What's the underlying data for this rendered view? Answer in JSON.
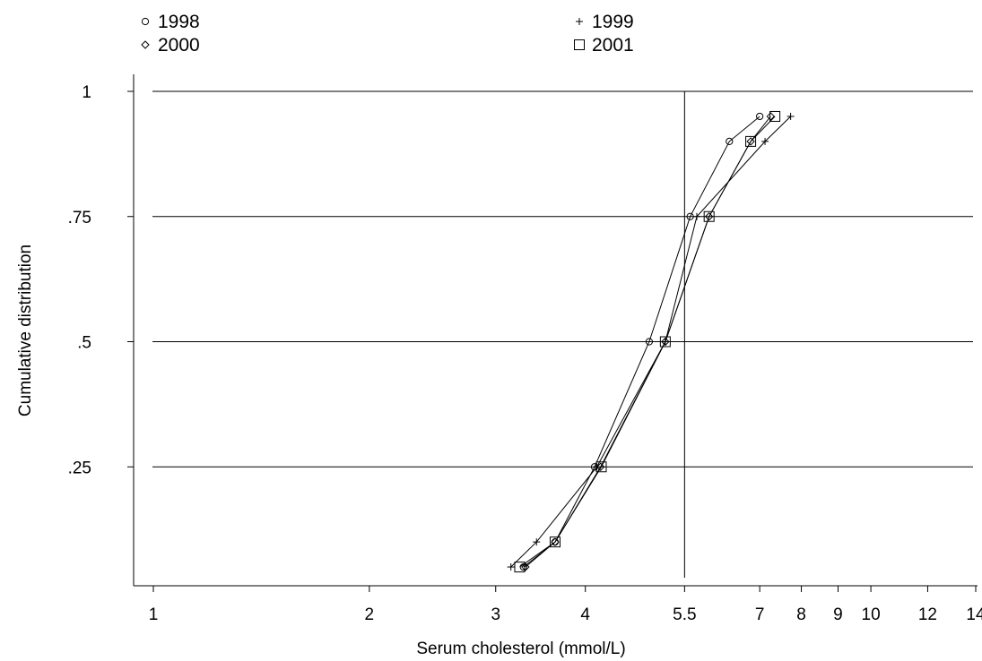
{
  "chart_data": {
    "type": "line",
    "xlabel": "Serum cholesterol (mmol/L)",
    "ylabel": "Cumulative distribution",
    "x_scale": "log",
    "xlim": [
      1,
      14
    ],
    "ylim": [
      0,
      1
    ],
    "x_ticks": [
      1,
      2,
      3,
      4,
      5.5,
      7,
      8,
      9,
      10,
      12,
      14
    ],
    "x_tick_labels": [
      "1",
      "2",
      "3",
      "4",
      "5.5",
      "7",
      "8",
      "9",
      "10",
      "12",
      "14"
    ],
    "y_ticks": [
      0.25,
      0.5,
      0.75,
      1
    ],
    "y_tick_labels": [
      ".25",
      ".5",
      ".75",
      "1"
    ],
    "grid": "horizontal",
    "legend_position": "top",
    "reference_line_x": 5.5,
    "series": [
      {
        "name": "1998",
        "marker": "circle",
        "x": [
          3.28,
          3.63,
          4.12,
          4.91,
          5.6,
          6.35,
          7.0
        ],
        "y": [
          0.05,
          0.1,
          0.25,
          0.5,
          0.75,
          0.9,
          0.95
        ]
      },
      {
        "name": "1999",
        "marker": "plus",
        "x": [
          3.15,
          3.42,
          4.15,
          5.17,
          5.72,
          7.12,
          7.73
        ],
        "y": [
          0.05,
          0.1,
          0.25,
          0.5,
          0.75,
          0.9,
          0.95
        ]
      },
      {
        "name": "2000",
        "marker": "diamond",
        "x": [
          3.3,
          3.63,
          4.2,
          5.17,
          5.95,
          6.8,
          7.25
        ],
        "y": [
          0.05,
          0.1,
          0.25,
          0.5,
          0.75,
          0.9,
          0.95
        ]
      },
      {
        "name": "2001",
        "marker": "square",
        "x": [
          3.24,
          3.63,
          4.21,
          5.17,
          5.95,
          6.8,
          7.35
        ],
        "y": [
          0.05,
          0.1,
          0.25,
          0.5,
          0.75,
          0.9,
          0.95
        ]
      }
    ]
  }
}
